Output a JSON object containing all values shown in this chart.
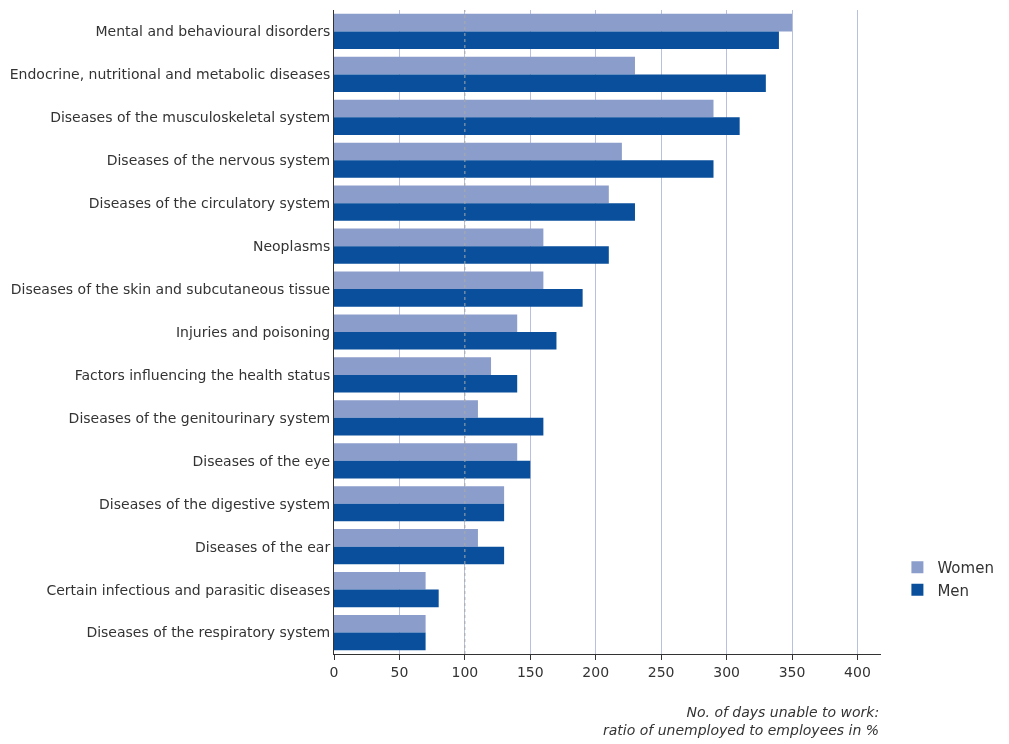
{
  "chart_data": {
    "type": "bar",
    "orientation": "horizontal",
    "xlabel": "No. of days unable to work:\nratio of unemployed to employees in %",
    "categories": [
      "Mental and behavioural disorders",
      "Endocrine, nutritional and metabolic diseases",
      "Diseases of the musculoskeletal system",
      "Diseases of the nervous system",
      "Diseases of the circulatory system",
      "Neoplasms",
      "Diseases of the skin and subcutaneous tissue",
      "Injuries and poisoning",
      "Factors influencing the health status",
      "Diseases of the genitourinary system",
      "Diseases of the eye",
      "Diseases of the digestive system",
      "Diseases of the ear",
      "Certain infectious and parasitic diseases",
      "Diseases of the respiratory system"
    ],
    "series": [
      {
        "name": "Women",
        "color": "#8b9dcb",
        "values": [
          350,
          230,
          290,
          220,
          210,
          160,
          160,
          140,
          120,
          110,
          140,
          130,
          110,
          70,
          70
        ]
      },
      {
        "name": "Men",
        "color": "#0a4f9c",
        "values": [
          340,
          330,
          310,
          290,
          230,
          210,
          190,
          170,
          140,
          160,
          150,
          130,
          130,
          80,
          70
        ]
      }
    ],
    "xlim": [
      0,
      418
    ],
    "xticks": [
      0,
      50,
      100,
      150,
      200,
      250,
      300,
      350,
      400
    ],
    "grid": "x",
    "ref_lines": [
      {
        "axis": "x",
        "value": 100,
        "color": "#aaaaaa",
        "line_style": "dotted"
      }
    ],
    "legend": "bottom right"
  }
}
